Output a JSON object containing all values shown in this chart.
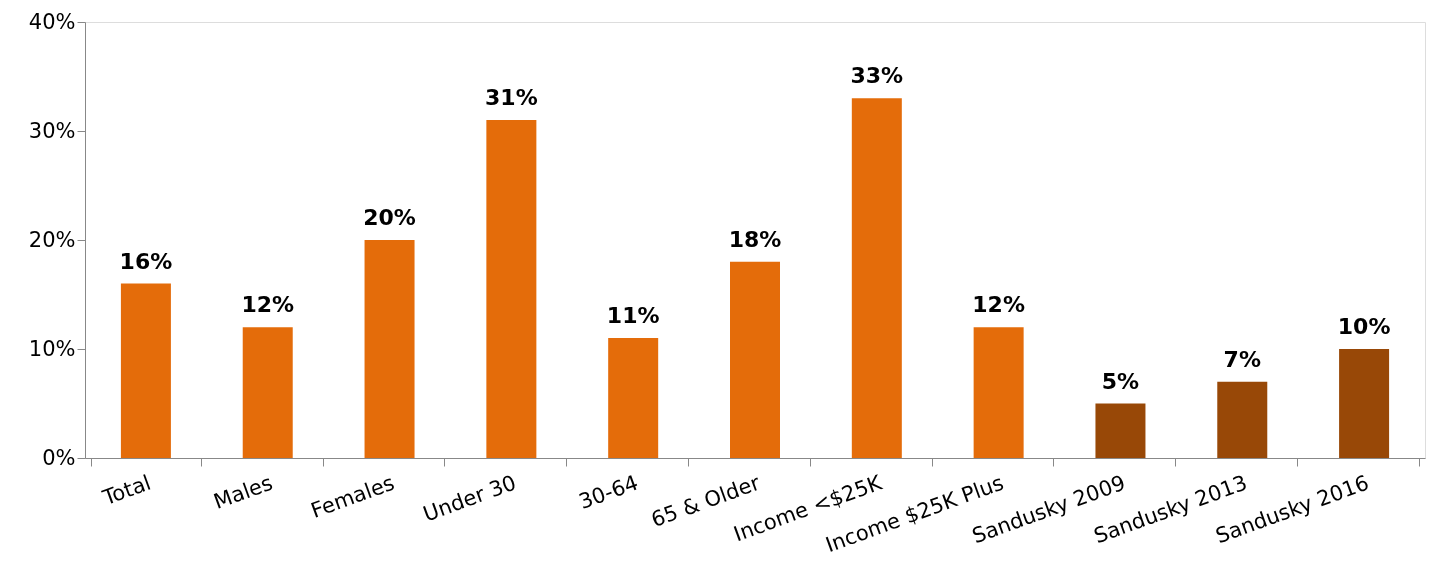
{
  "chart_data": {
    "type": "bar",
    "categories": [
      "Total",
      "Males",
      "Females",
      "Under 30",
      "30-64",
      "65 & Older",
      "Income <$25K",
      "Income $25K Plus",
      "Sandusky 2009",
      "Sandusky 2013",
      "Sandusky 2016"
    ],
    "values": [
      16,
      12,
      20,
      31,
      11,
      18,
      33,
      12,
      5,
      7,
      10
    ],
    "colors": [
      "#e46c0a",
      "#e46c0a",
      "#e46c0a",
      "#e46c0a",
      "#e46c0a",
      "#e46c0a",
      "#e46c0a",
      "#e46c0a",
      "#984807",
      "#984807",
      "#984807"
    ],
    "value_labels": [
      "16%",
      "12%",
      "20%",
      "31%",
      "11%",
      "18%",
      "33%",
      "12%",
      "5%",
      "7%",
      "10%"
    ],
    "ylim": [
      0,
      40
    ],
    "yticks": [
      {
        "value": 0,
        "label": "0%"
      },
      {
        "value": 10,
        "label": "10%"
      },
      {
        "value": 20,
        "label": "20%"
      },
      {
        "value": 30,
        "label": "30%"
      },
      {
        "value": 40,
        "label": "40%"
      }
    ],
    "grid": false
  }
}
